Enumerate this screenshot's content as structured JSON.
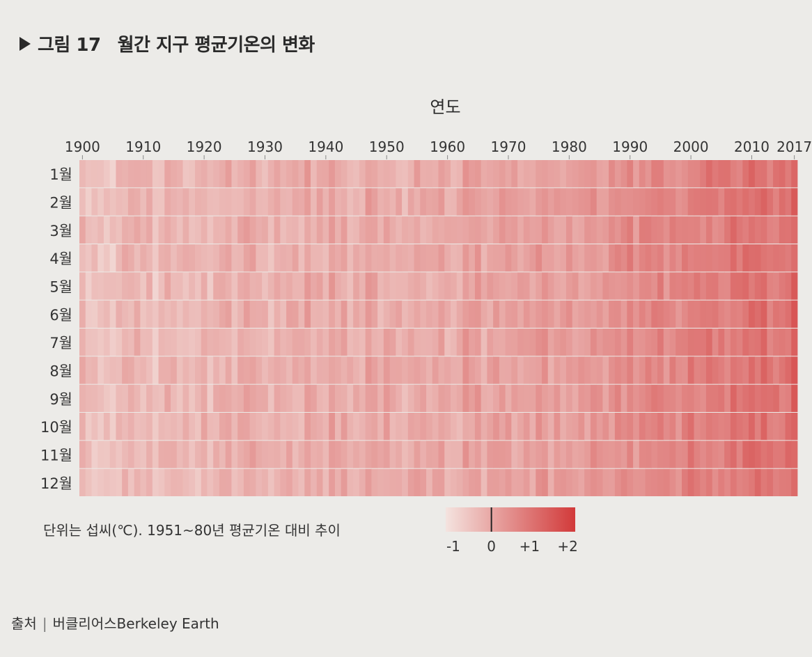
{
  "figure": {
    "label": "그림 17",
    "title": "월간 지구 평균기온의 변화"
  },
  "note": "단위는 섭씨(℃). 1951~80년 평균기온 대비 추이",
  "source": {
    "label": "출처",
    "value": "버클리어스Berkeley Earth"
  },
  "colors": {
    "low": "#f4e3df",
    "high": "#d23a3a",
    "background": "#ecebe8"
  },
  "chart_data": {
    "type": "heatmap",
    "xlabel": "연도",
    "x_start": 1900,
    "x_end": 2017,
    "x_ticks": [
      "1900",
      "1910",
      "1920",
      "1930",
      "1940",
      "1950",
      "1960",
      "1970",
      "1980",
      "1990",
      "2000",
      "2010",
      "2017"
    ],
    "y_categories": [
      "1월",
      "2월",
      "3월",
      "4월",
      "5월",
      "6월",
      "7월",
      "8월",
      "9월",
      "10월",
      "11월",
      "12월"
    ],
    "color_scale": {
      "min": -1.2,
      "max": 2.2,
      "ticks": [
        "-1",
        "0",
        "+1",
        "+2"
      ],
      "tick_values": [
        -1,
        0,
        1,
        2
      ],
      "marker": 0
    },
    "decade_mean_anomaly": {
      "1900": -0.35,
      "1910": -0.45,
      "1920": -0.3,
      "1930": -0.15,
      "1940": 0.0,
      "1950": -0.05,
      "1960": -0.05,
      "1970": 0.05,
      "1980": 0.3,
      "1990": 0.5,
      "2000": 0.8,
      "2010": 1.05,
      "2017": 1.25
    }
  }
}
